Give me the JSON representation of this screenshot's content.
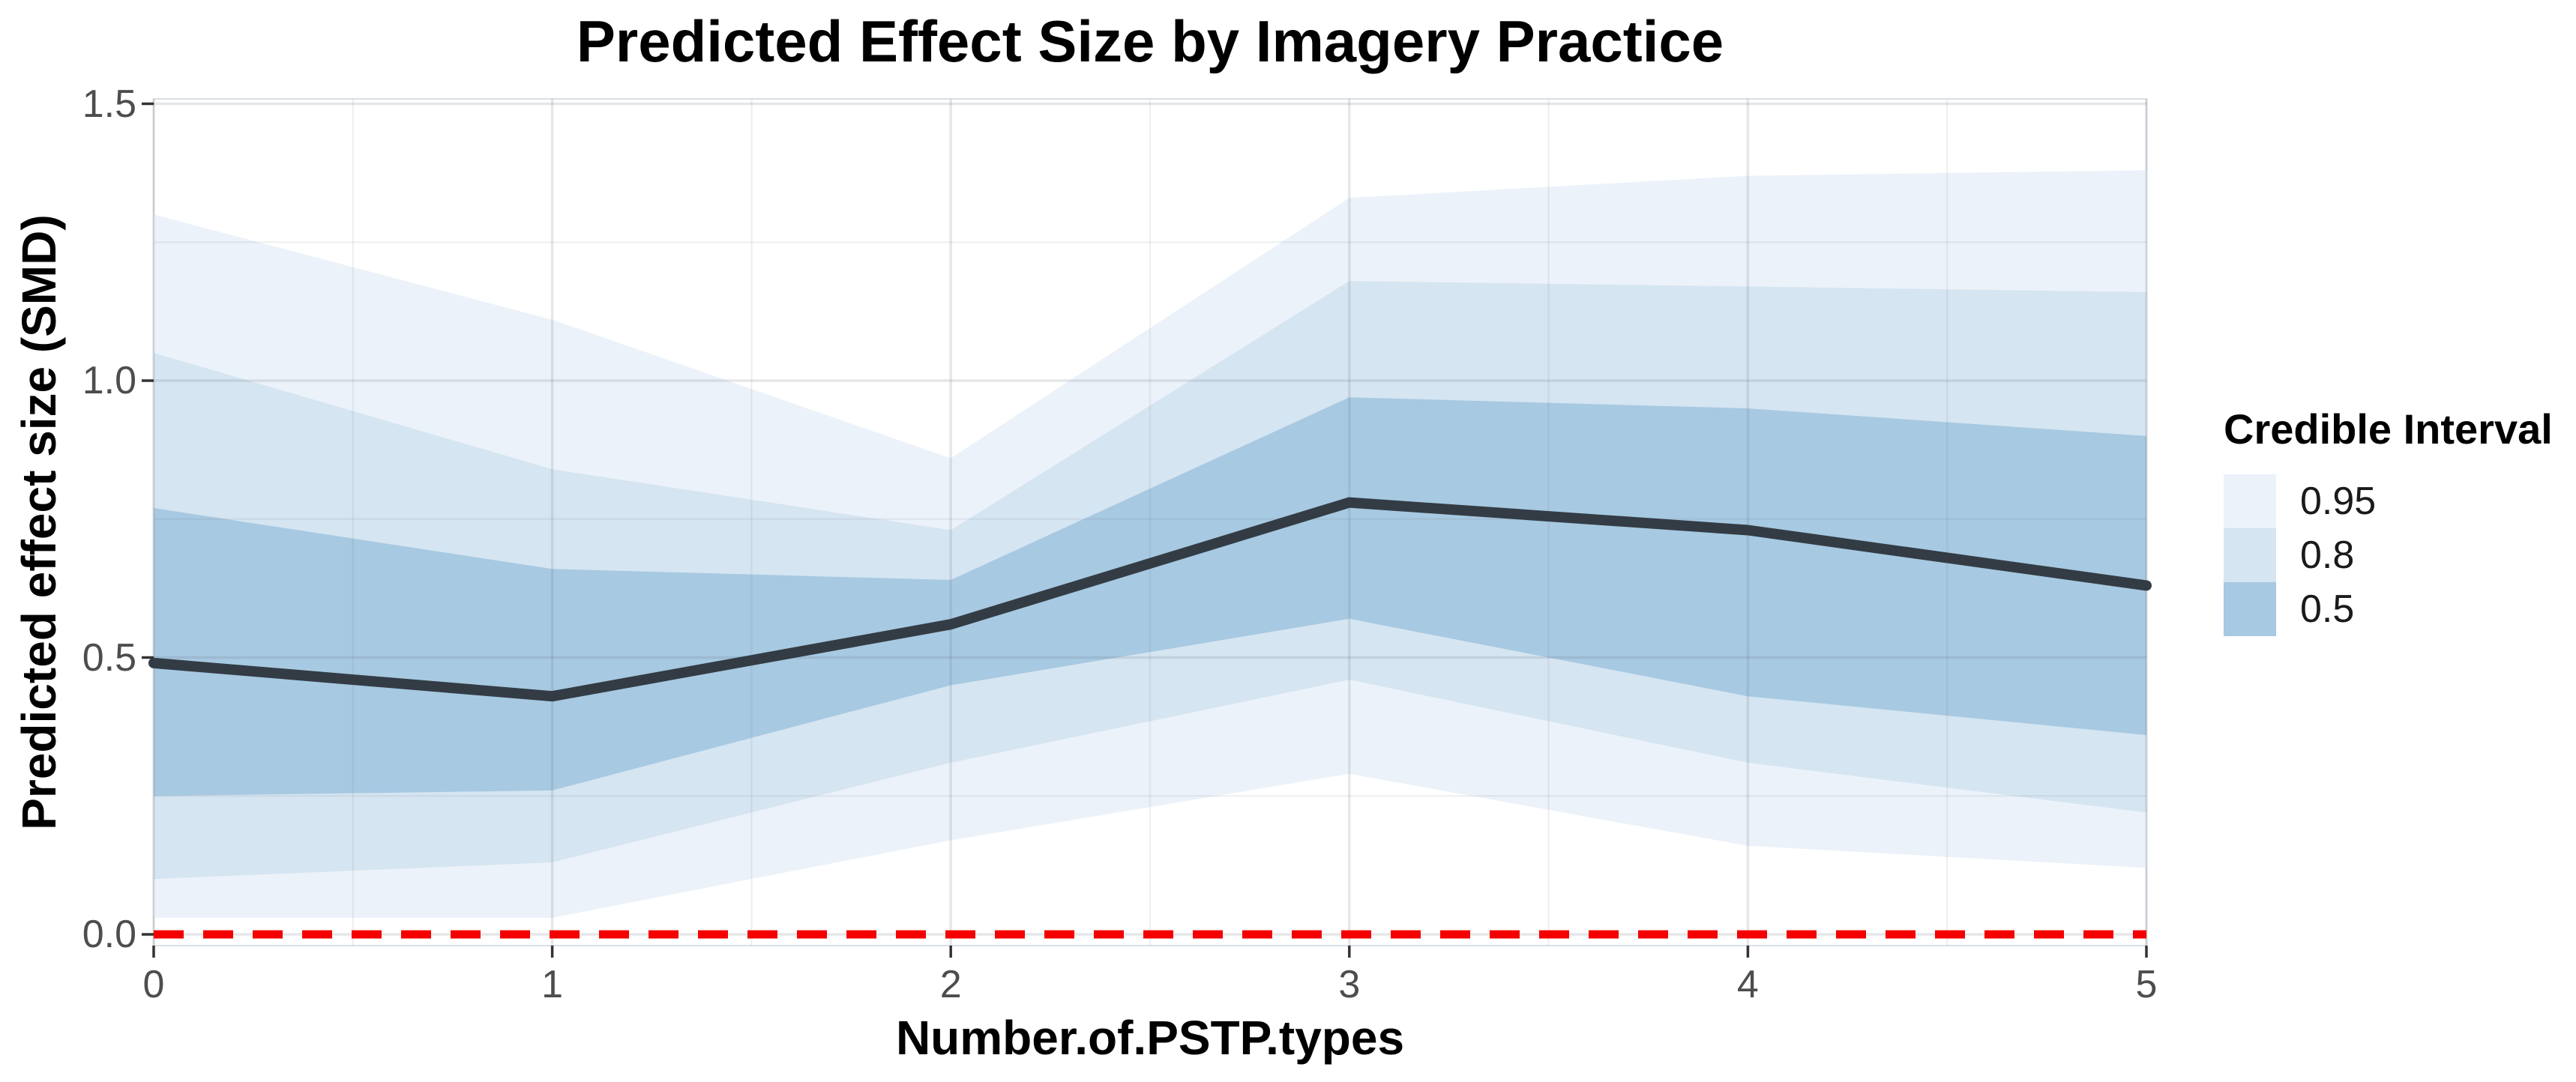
{
  "chart_data": {
    "type": "line",
    "title": "Predicted Effect Size by Imagery Practice",
    "xlabel": "Number.of.PSTP.types",
    "ylabel": "Predicted effect size (SMD)",
    "x": [
      0,
      1,
      2,
      3,
      4,
      5
    ],
    "x_tick_labels": [
      "0",
      "1",
      "2",
      "3",
      "4",
      "5"
    ],
    "y_ticks": [
      0.0,
      0.5,
      1.0,
      1.5
    ],
    "y_tick_labels": [
      "0.0",
      "0.5",
      "1.0",
      "1.5"
    ],
    "xlim": [
      0,
      5
    ],
    "ylim": [
      0,
      1.5
    ],
    "grid": {
      "major_x": [
        0,
        1,
        2,
        3,
        4,
        5
      ],
      "minor_x": [
        0.5,
        1.5,
        2.5,
        3.5,
        4.5
      ],
      "major_y": [
        0,
        0.5,
        1.0,
        1.5
      ],
      "minor_y": [
        0.25,
        0.75,
        1.25
      ]
    },
    "series": [
      {
        "name": "ci_0.95",
        "type": "ribbon",
        "color": "#ecf2f9",
        "lower": [
          0.03,
          0.03,
          0.17,
          0.29,
          0.16,
          0.12
        ],
        "upper": [
          1.3,
          1.11,
          0.86,
          1.33,
          1.37,
          1.38
        ]
      },
      {
        "name": "ci_0.8",
        "type": "ribbon",
        "color": "#d5e5f1",
        "lower": [
          0.1,
          0.13,
          0.31,
          0.46,
          0.31,
          0.22
        ],
        "upper": [
          1.05,
          0.84,
          0.73,
          1.18,
          1.17,
          1.16
        ]
      },
      {
        "name": "ci_0.5",
        "type": "ribbon",
        "color": "#a7c9e2",
        "lower": [
          0.25,
          0.26,
          0.45,
          0.57,
          0.43,
          0.36
        ],
        "upper": [
          0.77,
          0.66,
          0.64,
          0.97,
          0.95,
          0.9
        ]
      },
      {
        "name": "mean_prediction",
        "type": "line",
        "color": "#333c44",
        "values": [
          0.49,
          0.43,
          0.56,
          0.78,
          0.73,
          0.63
        ]
      }
    ],
    "reference_line": {
      "y": 0,
      "color": "#f40000",
      "style": "dashed"
    },
    "legend": {
      "title": "Credible Interval",
      "position": "right",
      "items": [
        {
          "label": "0.95",
          "color": "#ecf2f9"
        },
        {
          "label": "0.8",
          "color": "#d5e5f1"
        },
        {
          "label": "0.5",
          "color": "#a7c9e2"
        }
      ]
    }
  }
}
